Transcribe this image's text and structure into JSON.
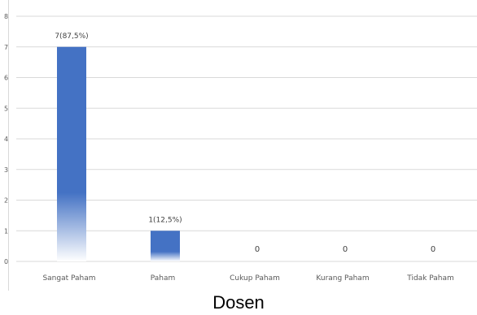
{
  "caption": "Dosen",
  "colors": {
    "bar": "#4472C4",
    "bar_fade": "#FFFFFF",
    "grid": "#D9D9D9",
    "axis_text": "#595959",
    "label_text": "#404040"
  },
  "chart_data": {
    "type": "bar",
    "title": "",
    "xlabel": "",
    "ylabel": "",
    "categories": [
      "Sangat Paham",
      "Paham",
      "Cukup Paham",
      "Kurang Paham",
      "Tidak Paham"
    ],
    "values": [
      7,
      1,
      0,
      0,
      0
    ],
    "data_labels": [
      "7(87,5%)",
      "1(12,5%)",
      "0",
      "0",
      "0"
    ],
    "ylim": [
      0,
      8
    ],
    "yticks": [
      0,
      1,
      2,
      3,
      4,
      5,
      6,
      7,
      8
    ],
    "grid": true,
    "legend": "none"
  }
}
